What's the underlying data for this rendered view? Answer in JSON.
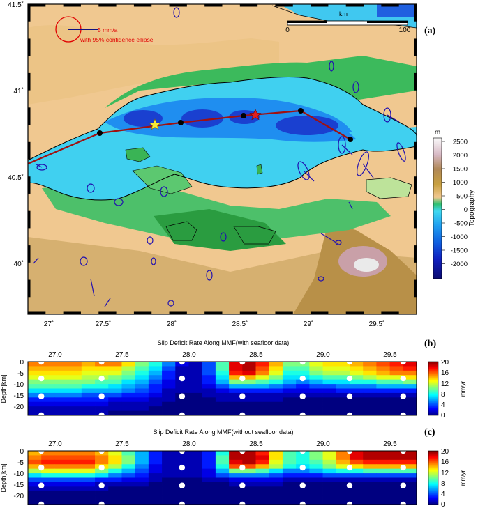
{
  "map": {
    "panel_label": "(a)",
    "lat_ticks": [
      "41.5˚",
      "41˚",
      "40.5˚",
      "40˚"
    ],
    "lon_ticks": [
      "27˚",
      "27.5˚",
      "28˚",
      "28.5˚",
      "29˚",
      "29.5˚"
    ],
    "scalebar": {
      "unit": "km",
      "start": "0",
      "end": "100"
    },
    "legend": {
      "velocity_text": "5 mm/a",
      "ellipse_text": "with 95% confidence ellipse"
    },
    "colorbar": {
      "unit": "m",
      "title": "Topography",
      "ticks": [
        "2500",
        "2000",
        "1500",
        "1000",
        "500",
        "0",
        "-500",
        "-1000",
        "-1500",
        "-2000"
      ]
    },
    "colors": {
      "deep_sea": "#1030c0",
      "shelf": "#40d0f0",
      "lowland": "#30b050",
      "upland": "#f0c890",
      "fault": "#a01010",
      "vectors": "#2010b0"
    }
  },
  "panels": [
    {
      "panel_label": "(b)",
      "title": "Slip Deficit Rate Along MMF(with seafloor data)",
      "x_ticks": [
        "27.0",
        "27.5",
        "28.0",
        "28.5",
        "29.0",
        "29.5"
      ],
      "y_ticks": [
        "0",
        "-5",
        "-10",
        "-15",
        "-20"
      ],
      "y_label": "Depth[km]",
      "cbar_ticks": [
        "20",
        "16",
        "12",
        "8",
        "4",
        "0"
      ],
      "cbar_unit": "mm/yr"
    },
    {
      "panel_label": "(c)",
      "title": "Slip Deficit Rate Along MMF(without seafloor data)",
      "x_ticks": [
        "27.0",
        "27.5",
        "28.0",
        "28.5",
        "29.0",
        "29.5"
      ],
      "y_ticks": [
        "0",
        "-5",
        "-10",
        "-15",
        "-20"
      ],
      "y_label": "Depth[km]",
      "cbar_ticks": [
        "20",
        "16",
        "12",
        "8",
        "4",
        "0"
      ],
      "cbar_unit": "mm/yr"
    }
  ],
  "chart_data": [
    {
      "type": "heatmap",
      "title": "Slip Deficit Rate Along MMF(with seafloor data)",
      "xlabel": "",
      "ylabel": "Depth[km]",
      "x": [
        26.85,
        26.95,
        27.05,
        27.15,
        27.25,
        27.35,
        27.45,
        27.55,
        27.65,
        27.75,
        27.85,
        27.95,
        28.05,
        28.15,
        28.25,
        28.35,
        28.45,
        28.55,
        28.65,
        28.75,
        28.85,
        28.95,
        29.05,
        29.15,
        29.25,
        29.35,
        29.45,
        29.55,
        29.65
      ],
      "depth_bins": [
        -1,
        -3,
        -5,
        -7,
        -9,
        -11,
        -13,
        -15,
        -17,
        -19,
        -21,
        -23
      ],
      "xlim": [
        26.8,
        29.7
      ],
      "ylim": [
        -24,
        0
      ],
      "zlim": [
        0,
        20
      ],
      "colorbar_label": "mm/yr",
      "values": [
        [
          15,
          15,
          15,
          15,
          14,
          15,
          15,
          13,
          10,
          8,
          5,
          2,
          1,
          4,
          9,
          18,
          19,
          17,
          14,
          10,
          10,
          12,
          13,
          13,
          14,
          15,
          16,
          17,
          18
        ],
        [
          14,
          14,
          14,
          14,
          13,
          13,
          13,
          11,
          9,
          7,
          4,
          1,
          1,
          4,
          9,
          18,
          19,
          16,
          13,
          9,
          9,
          11,
          12,
          12,
          13,
          14,
          15,
          16,
          17
        ],
        [
          13,
          13,
          13,
          13,
          12,
          12,
          12,
          10,
          8,
          6,
          3,
          1,
          1,
          4,
          8,
          17,
          18,
          15,
          12,
          8,
          8,
          10,
          11,
          11,
          12,
          13,
          14,
          15,
          15
        ],
        [
          12,
          12,
          12,
          12,
          11,
          11,
          10,
          9,
          7,
          5,
          3,
          1,
          1,
          3,
          7,
          14,
          14,
          12,
          10,
          7,
          7,
          8,
          9,
          9,
          10,
          11,
          12,
          12,
          13
        ],
        [
          10,
          10,
          10,
          10,
          10,
          9,
          9,
          7,
          6,
          4,
          2,
          1,
          1,
          3,
          6,
          10,
          10,
          9,
          8,
          6,
          5,
          6,
          7,
          7,
          8,
          8,
          9,
          9,
          10
        ],
        [
          9,
          9,
          9,
          9,
          8,
          8,
          7,
          6,
          5,
          3,
          2,
          1,
          1,
          2,
          4,
          6,
          6,
          6,
          5,
          4,
          3,
          4,
          4,
          5,
          5,
          5,
          6,
          6,
          6
        ],
        [
          7,
          7,
          7,
          7,
          6,
          6,
          6,
          5,
          4,
          3,
          1,
          1,
          1,
          1,
          2,
          3,
          3,
          3,
          3,
          2,
          2,
          2,
          2,
          3,
          3,
          3,
          3,
          3,
          3
        ],
        [
          5,
          5,
          5,
          5,
          4,
          4,
          4,
          3,
          3,
          2,
          1,
          0,
          0,
          1,
          1,
          1,
          1,
          1,
          1,
          1,
          1,
          1,
          1,
          1,
          1,
          1,
          1,
          1,
          1
        ],
        [
          3,
          3,
          3,
          3,
          3,
          3,
          2,
          2,
          2,
          1,
          1,
          0,
          0,
          0,
          1,
          1,
          1,
          1,
          1,
          0,
          0,
          0,
          0,
          0,
          0,
          0,
          0,
          0,
          0
        ],
        [
          2,
          2,
          2,
          2,
          2,
          2,
          1,
          1,
          1,
          1,
          0,
          0,
          0,
          0,
          0,
          0,
          0,
          0,
          0,
          0,
          0,
          0,
          0,
          0,
          0,
          0,
          0,
          0,
          0
        ],
        [
          1,
          1,
          1,
          1,
          1,
          1,
          1,
          1,
          1,
          0,
          0,
          0,
          0,
          0,
          0,
          0,
          0,
          0,
          0,
          0,
          0,
          0,
          0,
          0,
          0,
          0,
          0,
          0,
          0
        ],
        [
          1,
          1,
          1,
          1,
          1,
          1,
          0,
          0,
          0,
          0,
          0,
          0,
          0,
          0,
          0,
          0,
          0,
          0,
          0,
          0,
          0,
          0,
          0,
          0,
          0,
          0,
          0,
          0,
          0
        ]
      ],
      "points": [
        {
          "x": 26.9,
          "y": 0
        },
        {
          "x": 27.35,
          "y": 0
        },
        {
          "x": 27.95,
          "y": 0
        },
        {
          "x": 28.4,
          "y": 0
        },
        {
          "x": 28.85,
          "y": 0
        },
        {
          "x": 29.2,
          "y": 0
        },
        {
          "x": 29.6,
          "y": 0
        },
        {
          "x": 26.9,
          "y": -7.5
        },
        {
          "x": 27.35,
          "y": -7.5
        },
        {
          "x": 27.95,
          "y": -7.5
        },
        {
          "x": 28.4,
          "y": -7.5
        },
        {
          "x": 28.85,
          "y": -7.5
        },
        {
          "x": 29.2,
          "y": -7.5
        },
        {
          "x": 29.6,
          "y": -7.5
        },
        {
          "x": 26.9,
          "y": -15.5
        },
        {
          "x": 27.35,
          "y": -15.5
        },
        {
          "x": 27.95,
          "y": -15.5
        },
        {
          "x": 28.4,
          "y": -15.5
        },
        {
          "x": 28.85,
          "y": -15.5
        },
        {
          "x": 29.2,
          "y": -15.5
        },
        {
          "x": 29.6,
          "y": -15.5
        },
        {
          "x": 26.9,
          "y": -24
        },
        {
          "x": 27.35,
          "y": -24
        },
        {
          "x": 27.95,
          "y": -24
        },
        {
          "x": 28.4,
          "y": -24
        },
        {
          "x": 28.85,
          "y": -24
        },
        {
          "x": 29.2,
          "y": -24
        },
        {
          "x": 29.6,
          "y": -24
        }
      ]
    },
    {
      "type": "heatmap",
      "title": "Slip Deficit Rate Along MMF(without seafloor data)",
      "xlabel": "",
      "ylabel": "Depth[km]",
      "x": [
        26.85,
        26.95,
        27.05,
        27.15,
        27.25,
        27.35,
        27.45,
        27.55,
        27.65,
        27.75,
        27.85,
        27.95,
        28.05,
        28.15,
        28.25,
        28.35,
        28.45,
        28.55,
        28.65,
        28.75,
        28.85,
        28.95,
        29.05,
        29.15,
        29.25,
        29.35,
        29.45,
        29.55,
        29.65
      ],
      "depth_bins": [
        -1,
        -3,
        -5,
        -7,
        -9,
        -11,
        -13,
        -15,
        -17,
        -19,
        -21,
        -23
      ],
      "xlim": [
        26.8,
        29.7
      ],
      "ylim": [
        -24,
        0
      ],
      "zlim": [
        0,
        20
      ],
      "colorbar_label": "mm/yr",
      "values": [
        [
          14,
          15,
          15,
          15,
          15,
          14,
          12,
          9,
          6,
          3,
          1,
          1,
          1,
          3,
          8,
          19,
          19,
          17,
          13,
          9,
          8,
          10,
          12,
          15,
          18,
          19,
          19,
          19,
          19
        ],
        [
          15,
          16,
          16,
          16,
          16,
          15,
          13,
          10,
          6,
          3,
          1,
          1,
          1,
          3,
          9,
          19,
          19,
          18,
          13,
          9,
          8,
          10,
          12,
          15,
          18,
          19,
          19,
          19,
          19
        ],
        [
          16,
          17,
          17,
          17,
          17,
          15,
          13,
          10,
          6,
          3,
          1,
          1,
          1,
          3,
          9,
          18,
          19,
          17,
          12,
          9,
          8,
          9,
          11,
          14,
          16,
          17,
          17,
          17,
          17
        ],
        [
          14,
          15,
          15,
          15,
          15,
          13,
          11,
          8,
          5,
          2,
          1,
          1,
          1,
          3,
          8,
          16,
          16,
          14,
          11,
          8,
          7,
          8,
          10,
          12,
          13,
          14,
          14,
          14,
          14
        ],
        [
          11,
          12,
          12,
          12,
          12,
          10,
          8,
          6,
          4,
          2,
          1,
          1,
          1,
          2,
          6,
          10,
          10,
          9,
          7,
          5,
          5,
          6,
          7,
          8,
          8,
          9,
          9,
          9,
          9
        ],
        [
          7,
          8,
          8,
          8,
          8,
          7,
          5,
          4,
          3,
          1,
          1,
          1,
          1,
          2,
          4,
          5,
          5,
          5,
          4,
          3,
          3,
          3,
          4,
          4,
          4,
          4,
          4,
          4,
          4
        ],
        [
          4,
          4,
          4,
          4,
          4,
          3,
          3,
          2,
          2,
          1,
          0,
          0,
          0,
          1,
          1,
          2,
          2,
          2,
          2,
          1,
          1,
          1,
          1,
          1,
          1,
          1,
          1,
          1,
          1
        ],
        [
          2,
          2,
          2,
          2,
          2,
          1,
          1,
          1,
          1,
          0,
          0,
          0,
          0,
          0,
          0,
          1,
          1,
          1,
          1,
          0,
          0,
          0,
          0,
          0,
          0,
          0,
          0,
          0,
          0
        ],
        [
          1,
          1,
          1,
          1,
          1,
          1,
          0,
          0,
          0,
          0,
          0,
          0,
          0,
          0,
          0,
          0,
          0,
          0,
          0,
          0,
          0,
          0,
          0,
          0,
          0,
          0,
          0,
          0,
          0
        ],
        [
          0,
          0,
          0,
          0,
          0,
          0,
          0,
          0,
          0,
          0,
          0,
          0,
          0,
          0,
          0,
          0,
          0,
          0,
          0,
          0,
          0,
          0,
          0,
          0,
          0,
          0,
          0,
          0,
          0
        ],
        [
          0,
          0,
          0,
          0,
          0,
          0,
          0,
          0,
          0,
          0,
          0,
          0,
          0,
          0,
          0,
          0,
          0,
          0,
          0,
          0,
          0,
          0,
          0,
          0,
          0,
          0,
          0,
          0,
          0
        ],
        [
          0,
          0,
          0,
          0,
          0,
          0,
          0,
          0,
          0,
          0,
          0,
          0,
          0,
          0,
          0,
          0,
          0,
          0,
          0,
          0,
          0,
          0,
          0,
          0,
          0,
          0,
          0,
          0,
          0
        ]
      ],
      "points": [
        {
          "x": 26.9,
          "y": 0
        },
        {
          "x": 27.35,
          "y": 0
        },
        {
          "x": 27.95,
          "y": 0
        },
        {
          "x": 28.4,
          "y": 0
        },
        {
          "x": 28.85,
          "y": 0
        },
        {
          "x": 29.2,
          "y": 0
        },
        {
          "x": 29.6,
          "y": 0
        },
        {
          "x": 26.9,
          "y": -7.5
        },
        {
          "x": 27.35,
          "y": -7.5
        },
        {
          "x": 27.95,
          "y": -7.5
        },
        {
          "x": 28.4,
          "y": -7.5
        },
        {
          "x": 28.85,
          "y": -7.5
        },
        {
          "x": 29.2,
          "y": -7.5
        },
        {
          "x": 29.6,
          "y": -7.5
        },
        {
          "x": 26.9,
          "y": -15.5
        },
        {
          "x": 27.35,
          "y": -15.5
        },
        {
          "x": 27.95,
          "y": -15.5
        },
        {
          "x": 28.4,
          "y": -15.5
        },
        {
          "x": 28.85,
          "y": -15.5
        },
        {
          "x": 29.2,
          "y": -15.5
        },
        {
          "x": 29.6,
          "y": -15.5
        },
        {
          "x": 26.9,
          "y": -24
        },
        {
          "x": 27.35,
          "y": -24
        },
        {
          "x": 27.95,
          "y": -24
        },
        {
          "x": 28.4,
          "y": -24
        },
        {
          "x": 28.85,
          "y": -24
        },
        {
          "x": 29.2,
          "y": -24
        },
        {
          "x": 29.6,
          "y": -24
        }
      ]
    }
  ]
}
